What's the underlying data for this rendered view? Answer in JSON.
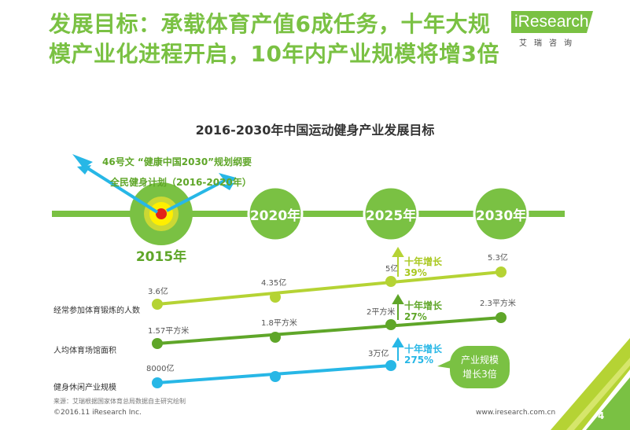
{
  "title_lines": [
    "发展目标：承载体育产值6成任务，十年大规",
    "模产业化进程开启，10年内产业规模将增3倍"
  ],
  "logo": {
    "word": "iResearch",
    "cn": "艾瑞咨询"
  },
  "chart_title": "2016-2030年中国运动健身产业发展目标",
  "policies": [
    "46号文 “健康中国2030”规划纲要",
    "全民健身计划（2016-2020年）"
  ],
  "years": [
    "2015年",
    "2020年",
    "2025年",
    "2030年"
  ],
  "rows": [
    {
      "label": "经常参加体育锻炼的人数",
      "values": [
        "3.6亿",
        "4.35亿",
        "5亿",
        "5.3亿"
      ],
      "growth": "十年增长",
      "growth_pct": "39%"
    },
    {
      "label": "人均体育场馆面积",
      "values": [
        "1.57平方米",
        "1.8平方米",
        "2平方米",
        "2.3平方米"
      ],
      "growth": "十年增长",
      "growth_pct": "27%"
    },
    {
      "label": "健身休闲产业规模",
      "values": [
        "8000亿",
        "",
        "3万亿",
        ""
      ],
      "growth": "十年增长",
      "growth_pct": "275%"
    }
  ],
  "callout": [
    "产业规模",
    "增长3倍"
  ],
  "source": "来源：艾瑞根据国家体育总局数据自主研究绘制",
  "copyright": "©2016.11 iResearch Inc.",
  "website": "www.iresearch.com.cn",
  "page": "4",
  "colors": {
    "green": "#7ac143",
    "light_green": "#b5d334",
    "dark_green": "#5fa629",
    "cyan": "#27b7e6"
  }
}
